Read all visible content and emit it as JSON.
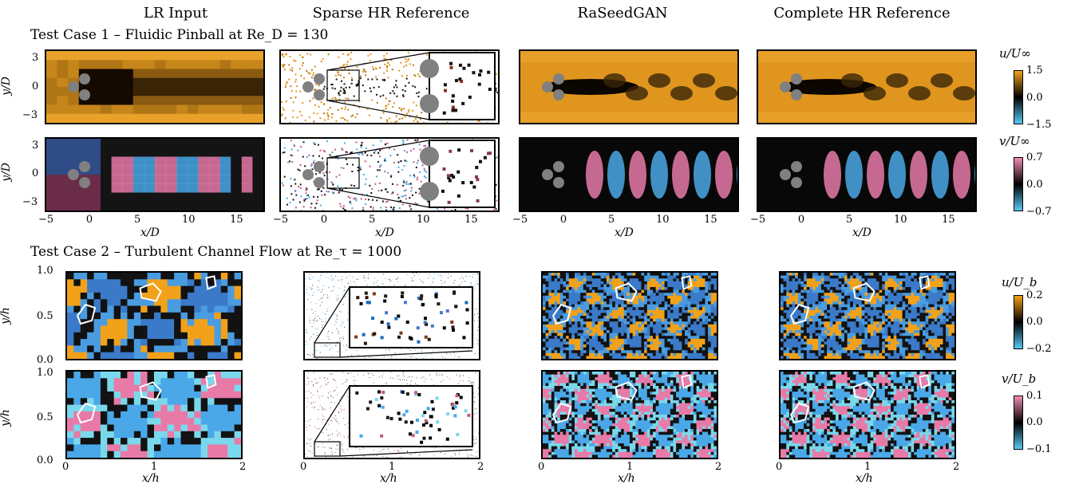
{
  "columns": [
    "LR Input",
    "Sparse HR Reference",
    "RaSeedGAN",
    "Complete HR Reference"
  ],
  "case1": {
    "title": "Test Case 1 – Fluidic Pinball at Re_D = 130",
    "ylabel": "y/D",
    "xlabel": "x/D",
    "yticks": [
      "3",
      "0",
      "−3"
    ],
    "xticks": [
      "−5",
      "0",
      "5",
      "10",
      "15"
    ],
    "colorbars": [
      {
        "label": "u/U∞",
        "ticks": [
          "1.5",
          "0.0",
          "−1.5"
        ],
        "colors": [
          "#f2a11b",
          "#000000",
          "#59c8f6"
        ]
      },
      {
        "label": "v/U∞",
        "ticks": [
          "0.7",
          "0.0",
          "−0.7"
        ],
        "colors": [
          "#f28cb4",
          "#000000",
          "#59c8f6"
        ]
      }
    ]
  },
  "case2": {
    "title": "Test Case 2 – Turbulent Channel Flow at Re_τ = 1000",
    "ylabel": "y/h",
    "xlabel": "x/h",
    "yticks": [
      "1.0",
      "0.5",
      "0.0"
    ],
    "xticks": [
      "0",
      "1",
      "2"
    ],
    "colorbars": [
      {
        "label": "u/U_b",
        "ticks": [
          "0.2",
          "0.0",
          "−0.2"
        ],
        "colors": [
          "#f2a11b",
          "#000000",
          "#59c8f6"
        ]
      },
      {
        "label": "v/U_b",
        "ticks": [
          "0.1",
          "0.0",
          "−0.1"
        ],
        "colors": [
          "#f28cb4",
          "#000000",
          "#59c8f6"
        ]
      }
    ]
  },
  "colors": {
    "orange": "#e89d25",
    "blue": "#4aa8e8",
    "pink": "#e87aa8",
    "black": "#000000"
  }
}
